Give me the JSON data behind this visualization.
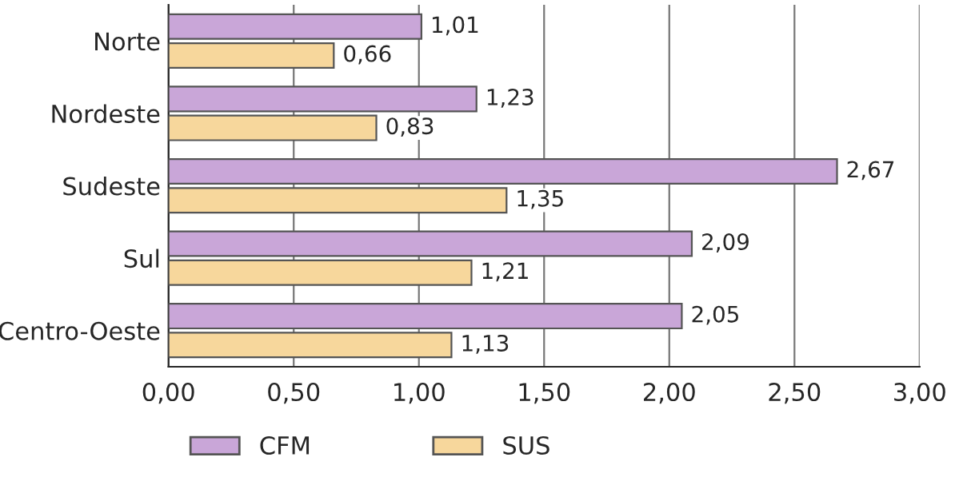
{
  "chart_data": {
    "type": "bar",
    "orientation": "horizontal",
    "categories": [
      "Norte",
      "Nordeste",
      "Sudeste",
      "Sul",
      "Centro-Oeste"
    ],
    "series": [
      {
        "name": "CFM",
        "color": "#c9a6d8",
        "values": [
          1.01,
          1.23,
          2.67,
          2.09,
          2.05
        ],
        "value_labels": [
          "1,01",
          "1,23",
          "2,67",
          "2,09",
          "2,05"
        ]
      },
      {
        "name": "SUS",
        "color": "#f7d79c",
        "values": [
          0.66,
          0.83,
          1.35,
          1.21,
          1.13
        ],
        "value_labels": [
          "0,66",
          "0,83",
          "1,35",
          "1,21",
          "1,13"
        ]
      }
    ],
    "xlim": [
      0,
      3
    ],
    "xticks": [
      {
        "value": 0,
        "label": "0,00"
      },
      {
        "value": 0.5,
        "label": "0,50"
      },
      {
        "value": 1,
        "label": "1,00"
      },
      {
        "value": 1.5,
        "label": "1,50"
      },
      {
        "value": 2,
        "label": "2,00"
      },
      {
        "value": 2.5,
        "label": "2,50"
      },
      {
        "value": 3,
        "label": "3,00"
      }
    ],
    "grid": "x",
    "legend": "bottom"
  }
}
